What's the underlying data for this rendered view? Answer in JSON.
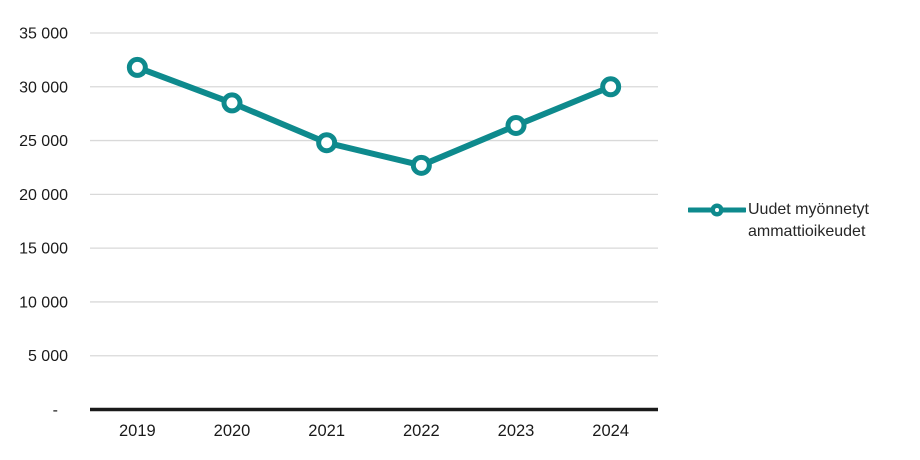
{
  "chart_data": {
    "type": "line",
    "title": "",
    "categories": [
      "2019",
      "2020",
      "2021",
      "2022",
      "2023",
      "2024"
    ],
    "series": [
      {
        "name": "Uudet myönnetyt ammattioikeudet",
        "values": [
          31800,
          28500,
          24800,
          22700,
          26400,
          30000
        ]
      }
    ],
    "xlabel": "",
    "ylabel": "",
    "ylim": [
      0,
      35000
    ],
    "ytick_interval": 5000,
    "ytick_labels": [
      "-",
      "5 000",
      "10 000",
      "15 000",
      "20 000",
      "25 000",
      "30 000",
      "35 000"
    ],
    "grid": true,
    "legend_position": "right",
    "marker_style": "open-circle",
    "colors": {
      "series": "#0E8A8D",
      "gridline": "#D9D9D9",
      "axis": "#1A1A1A",
      "text": "#1A1A1A",
      "marker_fill": "#FFFFFF"
    }
  }
}
